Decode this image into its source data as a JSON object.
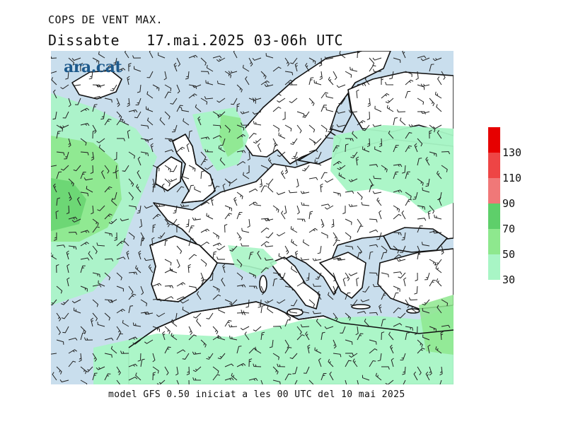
{
  "header": {
    "title": "COPS DE VENT MAX.",
    "day": "Dissabte",
    "valid": "17.mai.2025 03-06h UTC"
  },
  "logo": {
    "text": "ara.cat"
  },
  "footer": {
    "text": "model GFS 0.50 iniciat a les 00 UTC del 10 mai 2025"
  },
  "legend": {
    "bins": [
      {
        "label": "30",
        "color": "#a8f5c5"
      },
      {
        "label": "50",
        "color": "#8ee88e"
      },
      {
        "label": "70",
        "color": "#5ecf6a"
      },
      {
        "label": "90",
        "color": "#f07878"
      },
      {
        "label": "110",
        "color": "#ee4545"
      },
      {
        "label": "130",
        "color": "#e60000"
      }
    ]
  },
  "colors": {
    "sea": "#c9deed",
    "land": "#ffffff",
    "coast": "#111111",
    "barb": "#222222"
  }
}
